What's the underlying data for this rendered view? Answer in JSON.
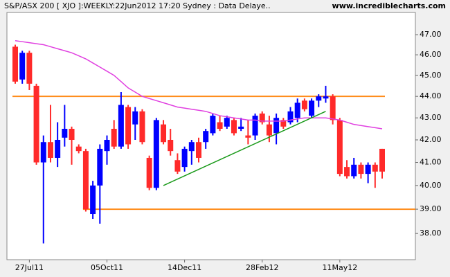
{
  "chart_data": {
    "type": "candlestick",
    "title": "S&P/ASX 200 [ XJO ]:WEEKLY:22Jun2012 17:20 Sydney : Data Delaye..",
    "source": "www.incrediblecharts.com",
    "log_scale": true,
    "categories": [
      null,
      null,
      "27Jul11",
      null,
      null,
      null,
      null,
      null,
      null,
      null,
      null,
      null,
      null,
      "05Oct11",
      null,
      null,
      null,
      null,
      null,
      null,
      null,
      null,
      null,
      null,
      "14Dec11",
      null,
      null,
      null,
      null,
      null,
      null,
      null,
      null,
      null,
      null,
      "28Feb12",
      null,
      null,
      null,
      null,
      null,
      null,
      null,
      null,
      null,
      null,
      "11May12",
      null,
      null,
      null,
      null,
      null,
      null
    ],
    "open": [
      46.4,
      44.8,
      46.1,
      44.5,
      41.0,
      41.9,
      41.2,
      42.1,
      42.5,
      41.7,
      41.5,
      38.8,
      40.0,
      41.5,
      42.5,
      41.7,
      43.5,
      42.7,
      43.3,
      41.2,
      39.9,
      42.7,
      42.0,
      41.1,
      40.8,
      41.5,
      41.9,
      41.9,
      42.3,
      42.8,
      42.6,
      42.9,
      42.5,
      42.2,
      42.2,
      43.2,
      42.7,
      42.3,
      42.9,
      42.8,
      43.0,
      43.8,
      43.1,
      43.8,
      43.9,
      44.0,
      42.9,
      40.8,
      40.4,
      40.9,
      40.5,
      40.9,
      41.6
    ],
    "high": [
      46.5,
      46.2,
      46.2,
      44.6,
      42.2,
      43.6,
      42.8,
      43.6,
      42.6,
      41.8,
      41.6,
      40.2,
      41.8,
      42.2,
      42.9,
      44.2,
      43.6,
      43.5,
      43.4,
      41.3,
      43.0,
      42.9,
      42.5,
      41.4,
      41.7,
      42.0,
      42.1,
      42.5,
      43.2,
      43.1,
      43.1,
      43.0,
      43.0,
      42.9,
      43.2,
      43.3,
      43.1,
      43.2,
      43.0,
      43.5,
      43.9,
      43.9,
      43.9,
      44.1,
      44.5,
      44.1,
      43.0,
      41.1,
      41.2,
      41.0,
      41.0,
      41.0,
      41.6
    ],
    "low": [
      44.6,
      44.6,
      44.3,
      40.9,
      37.6,
      41.0,
      40.8,
      41.7,
      40.9,
      41.4,
      38.9,
      38.6,
      38.4,
      40.9,
      41.6,
      41.6,
      41.6,
      42.0,
      41.8,
      39.8,
      39.8,
      41.8,
      41.3,
      40.5,
      40.6,
      40.9,
      41.0,
      41.6,
      42.2,
      42.4,
      42.5,
      42.2,
      42.4,
      41.8,
      42.0,
      42.7,
      41.9,
      41.8,
      42.5,
      42.7,
      42.8,
      43.3,
      43.0,
      43.5,
      43.7,
      42.7,
      40.4,
      40.3,
      40.3,
      40.3,
      40.1,
      39.9,
      40.3
    ],
    "close": [
      44.7,
      46.1,
      44.6,
      41.0,
      41.9,
      41.2,
      42.0,
      42.5,
      42.0,
      41.5,
      39.0,
      40.0,
      41.6,
      42.0,
      41.7,
      43.6,
      41.8,
      43.3,
      41.9,
      39.9,
      42.9,
      41.9,
      41.5,
      40.6,
      41.6,
      41.9,
      41.2,
      42.4,
      43.1,
      42.5,
      43.0,
      42.3,
      42.6,
      42.1,
      43.1,
      42.8,
      42.2,
      43.0,
      42.6,
      43.3,
      43.7,
      43.4,
      43.8,
      44.0,
      44.0,
      42.9,
      40.5,
      40.4,
      40.9,
      40.5,
      40.9,
      40.6,
      40.6
    ],
    "up_color": "#0000ff",
    "down_color": "#ff2a2a",
    "moving_average": {
      "color": "#e040e0",
      "values": [
        46.7,
        46.65,
        46.6,
        46.55,
        46.5,
        46.4,
        46.3,
        46.2,
        46.1,
        45.95,
        45.8,
        45.6,
        45.4,
        45.2,
        45.0,
        44.7,
        44.4,
        44.2,
        44.0,
        43.9,
        43.8,
        43.7,
        43.6,
        43.5,
        43.45,
        43.4,
        43.35,
        43.3,
        43.2,
        43.1,
        43.05,
        43.0,
        42.95,
        42.9,
        42.9,
        42.85,
        42.85,
        42.85,
        42.85,
        42.9,
        42.95,
        43.0,
        43.0,
        43.0,
        43.0,
        42.95,
        42.9,
        42.8,
        42.7,
        42.65,
        42.6,
        42.55,
        42.5
      ]
    },
    "levels": [
      {
        "value": 44,
        "start": 0,
        "end": 52,
        "color": "#ff8c1a"
      },
      {
        "value": 39,
        "start": 10,
        "color": "#ff8c1a"
      }
    ],
    "trendline": {
      "color": "#1a9a1a",
      "x": [
        21,
        44
      ],
      "y": [
        40.0,
        43.3
      ]
    },
    "ylim": [
      36.95,
      48.13
    ],
    "yticks": [
      {
        "value": 38,
        "label": "38.00"
      },
      {
        "value": 39,
        "label": "39.00"
      },
      {
        "value": 40,
        "label": "40.00"
      },
      {
        "value": 41,
        "label": "41.00"
      },
      {
        "value": 42,
        "label": "42.00"
      },
      {
        "value": 43,
        "label": "43.00"
      },
      {
        "value": 44,
        "label": "44.00"
      },
      {
        "value": 45,
        "label": "45.00"
      },
      {
        "value": 46,
        "label": "46.00"
      },
      {
        "value": 47,
        "label": "47.00"
      }
    ]
  }
}
